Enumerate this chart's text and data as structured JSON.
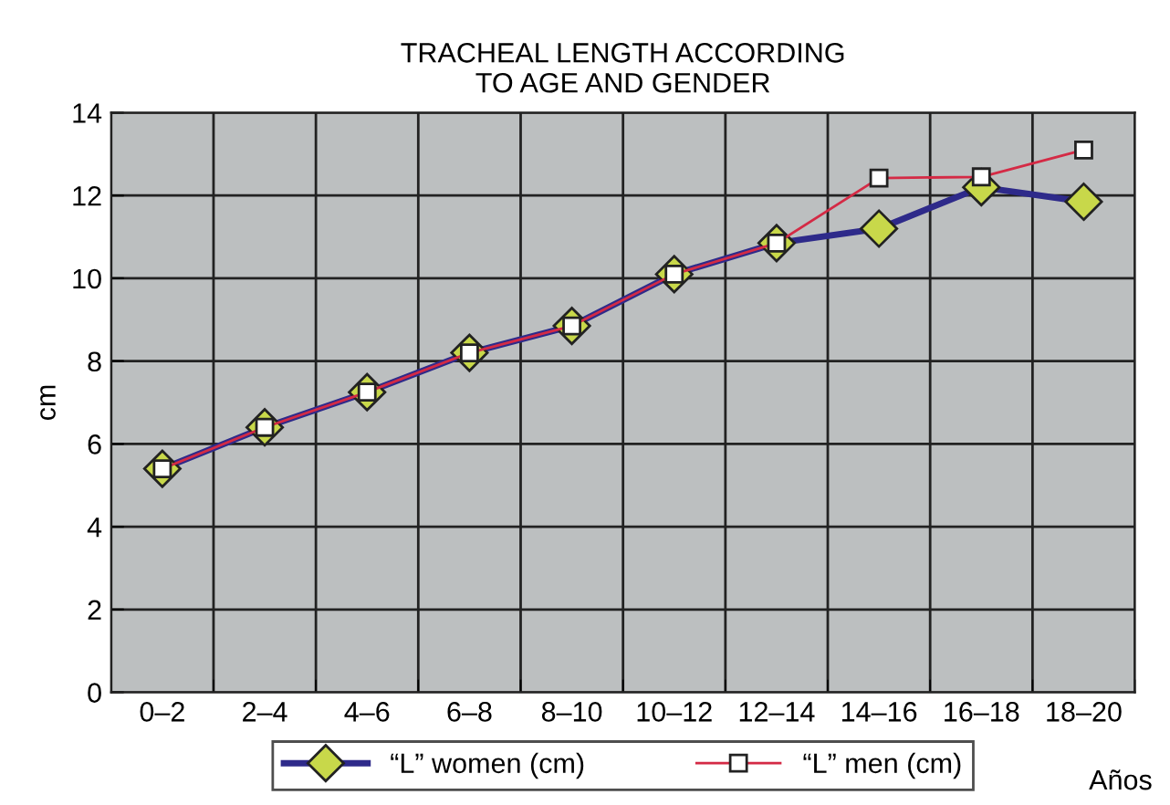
{
  "chart_data": {
    "type": "line",
    "title": "TRACHEAL LENGTH ACCORDING\nTO AGE AND GENDER",
    "xlabel": "Años",
    "ylabel": "cm",
    "categories": [
      "0–2",
      "2–4",
      "4–6",
      "6–8",
      "8–10",
      "10–12",
      "12–14",
      "14–16",
      "16–18",
      "18–20"
    ],
    "series": [
      {
        "name": "“L” women (cm)",
        "color": "#2e2a8a",
        "marker": "diamond",
        "values": [
          5.4,
          6.4,
          7.25,
          8.2,
          8.85,
          10.1,
          10.85,
          11.2,
          12.2,
          11.85
        ]
      },
      {
        "name": "“L” men (cm)",
        "color": "#d42a45",
        "marker": "square",
        "values": [
          5.4,
          6.4,
          7.25,
          8.2,
          8.85,
          10.1,
          10.85,
          12.42,
          12.45,
          13.1
        ]
      }
    ],
    "ylim": [
      0,
      14
    ],
    "yticks": [
      0,
      2,
      4,
      6,
      8,
      10,
      12,
      14
    ],
    "grid": true,
    "legend": "bottom"
  }
}
